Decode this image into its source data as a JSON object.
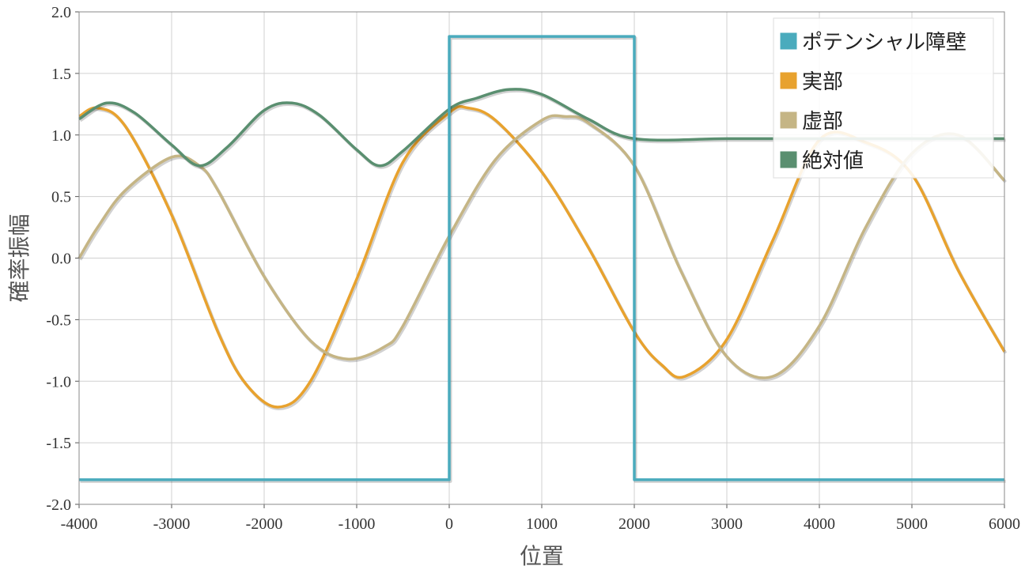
{
  "chart_data": {
    "type": "line",
    "title": "",
    "xlabel": "位置",
    "ylabel": "確率振幅",
    "xlim": [
      -4000,
      6000
    ],
    "ylim": [
      -2.0,
      2.0
    ],
    "x_ticks": [
      "-4000",
      "-3000",
      "-2000",
      "-1000",
      "0",
      "1000",
      "2000",
      "3000",
      "4000",
      "5000",
      "6000"
    ],
    "y_ticks": [
      "2.0",
      "1.5",
      "1.0",
      "0.5",
      "0.0",
      "-0.5",
      "-1.0",
      "-1.5",
      "-2.0"
    ],
    "grid": true,
    "legend_position": "top-right",
    "colors": {
      "barrier": "#4aabbd",
      "real": "#e8a22e",
      "imag": "#c5b585",
      "abs": "#5a8f70"
    },
    "series": [
      {
        "name": "ポテンシャル障壁",
        "color": "#4aabbd",
        "x": [
          -4000,
          0,
          0,
          2000,
          2000,
          6000
        ],
        "y": [
          -1.8,
          -1.8,
          1.8,
          1.8,
          -1.8,
          -1.8
        ]
      },
      {
        "name": "実部",
        "color": "#e8a22e",
        "x": [
          -4000,
          -3800,
          -3500,
          -3000,
          -2500,
          -2200,
          -1850,
          -1500,
          -1000,
          -500,
          0,
          200,
          500,
          1000,
          1500,
          2000,
          2300,
          2550,
          3000,
          3500,
          4000,
          4500,
          5000,
          5500,
          6000
        ],
        "y": [
          1.15,
          1.22,
          1.07,
          0.35,
          -0.6,
          -1.02,
          -1.21,
          -1.0,
          -0.17,
          0.78,
          1.18,
          1.22,
          1.12,
          0.7,
          0.09,
          -0.6,
          -0.87,
          -0.96,
          -0.66,
          0.15,
          0.96,
          0.94,
          0.68,
          -0.1,
          -0.76
        ]
      },
      {
        "name": "虚部",
        "color": "#c5b585",
        "x": [
          -4000,
          -3800,
          -3500,
          -3000,
          -2700,
          -2500,
          -2000,
          -1500,
          -1100,
          -700,
          -500,
          0,
          500,
          1000,
          1250,
          1500,
          2000,
          2500,
          3000,
          3500,
          4000,
          4500,
          5000,
          5500,
          6000
        ],
        "y": [
          0.0,
          0.25,
          0.55,
          0.82,
          0.75,
          0.55,
          -0.15,
          -0.67,
          -0.82,
          -0.72,
          -0.55,
          0.18,
          0.8,
          1.12,
          1.15,
          1.1,
          0.75,
          -0.1,
          -0.8,
          -0.96,
          -0.55,
          0.25,
          0.85,
          1.0,
          0.63
        ]
      },
      {
        "name": "絶対値",
        "color": "#5a8f70",
        "x": [
          -4000,
          -3700,
          -3400,
          -3000,
          -2700,
          -2400,
          -2000,
          -1700,
          -1400,
          -1000,
          -750,
          -500,
          0,
          300,
          650,
          1000,
          1500,
          2000,
          3000,
          4000,
          5000,
          6000
        ],
        "y": [
          1.13,
          1.26,
          1.18,
          0.92,
          0.75,
          0.9,
          1.2,
          1.26,
          1.16,
          0.88,
          0.75,
          0.87,
          1.21,
          1.3,
          1.37,
          1.33,
          1.13,
          0.97,
          0.97,
          0.97,
          0.97,
          0.97
        ]
      }
    ]
  }
}
